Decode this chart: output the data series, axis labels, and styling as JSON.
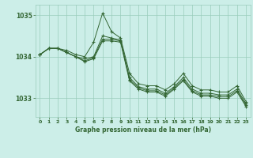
{
  "title": "Graphe pression niveau de la mer (hPa)",
  "xlabel": "Graphe pression niveau de la mer (hPa)",
  "background_color": "#cceee8",
  "grid_color": "#99ccbb",
  "line_color": "#336633",
  "marker_color": "#336633",
  "text_color": "#336633",
  "ylim": [
    1032.55,
    1035.25
  ],
  "xlim": [
    -0.5,
    23.5
  ],
  "yticks": [
    1033,
    1034,
    1035
  ],
  "xticks": [
    0,
    1,
    2,
    3,
    4,
    5,
    6,
    7,
    8,
    9,
    10,
    11,
    12,
    13,
    14,
    15,
    16,
    17,
    18,
    19,
    20,
    21,
    22,
    23
  ],
  "series": [
    [
      1034.05,
      1034.2,
      1034.2,
      1034.15,
      1034.05,
      1034.0,
      1034.35,
      1035.05,
      1034.6,
      1034.45,
      1033.6,
      1033.35,
      1033.3,
      1033.3,
      1033.2,
      1033.35,
      1033.6,
      1033.3,
      1033.2,
      1033.2,
      1033.15,
      1033.15,
      1033.3,
      1032.92
    ],
    [
      1034.05,
      1034.2,
      1034.2,
      1034.1,
      1034.0,
      1033.95,
      1034.0,
      1034.5,
      1034.45,
      1034.4,
      1033.5,
      1033.28,
      1033.22,
      1033.22,
      1033.12,
      1033.28,
      1033.5,
      1033.22,
      1033.12,
      1033.12,
      1033.08,
      1033.08,
      1033.22,
      1032.87
    ],
    [
      1034.05,
      1034.2,
      1034.2,
      1034.1,
      1034.0,
      1033.9,
      1033.98,
      1034.42,
      1034.42,
      1034.38,
      1033.45,
      1033.25,
      1033.18,
      1033.18,
      1033.08,
      1033.25,
      1033.45,
      1033.18,
      1033.08,
      1033.08,
      1033.04,
      1033.04,
      1033.18,
      1032.83
    ],
    [
      1034.05,
      1034.2,
      1034.2,
      1034.1,
      1034.0,
      1033.88,
      1033.95,
      1034.38,
      1034.38,
      1034.35,
      1033.42,
      1033.22,
      1033.15,
      1033.15,
      1033.05,
      1033.22,
      1033.42,
      1033.15,
      1033.05,
      1033.05,
      1033.0,
      1033.0,
      1033.15,
      1032.8
    ]
  ]
}
